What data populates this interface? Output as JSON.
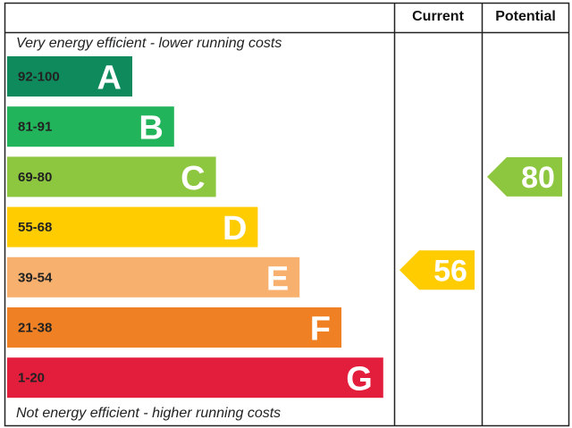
{
  "header": {
    "current": "Current",
    "potential": "Potential"
  },
  "top_note": "Very energy efficient - lower running costs",
  "bottom_note": "Not energy efficient - higher running costs",
  "bands": [
    {
      "range": "92-100",
      "letter": "A",
      "color": "#0f8a5c"
    },
    {
      "range": "81-91",
      "letter": "B",
      "color": "#22b45a"
    },
    {
      "range": "69-80",
      "letter": "C",
      "color": "#8dc63f"
    },
    {
      "range": "55-68",
      "letter": "D",
      "color": "#ffcc00"
    },
    {
      "range": "39-54",
      "letter": "E",
      "color": "#f8b06e"
    },
    {
      "range": "21-38",
      "letter": "F",
      "color": "#ef8023"
    },
    {
      "range": "1-20",
      "letter": "G",
      "color": "#e31d3c"
    }
  ],
  "current": {
    "value": 56
  },
  "potential": {
    "value": 80
  }
}
